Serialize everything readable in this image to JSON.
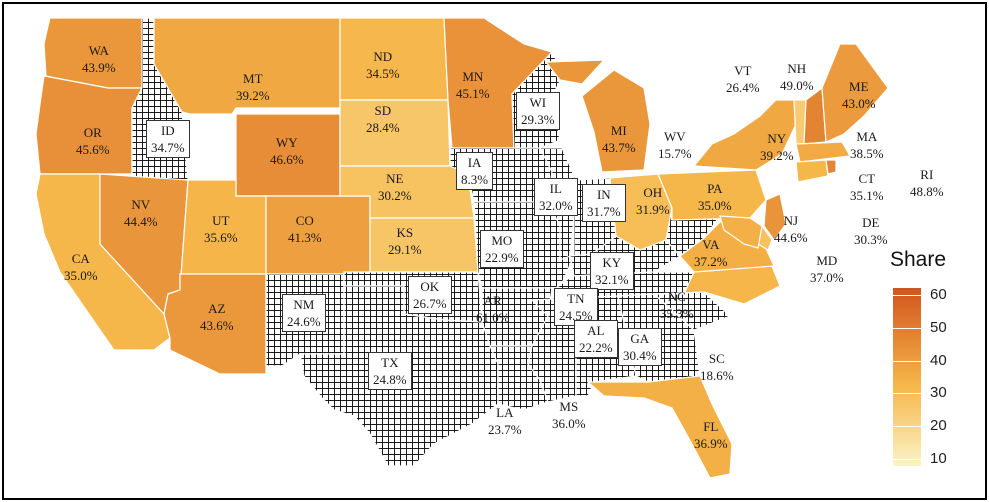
{
  "legend": {
    "title": "Share",
    "ticks": [
      "60",
      "50",
      "40",
      "30",
      "20",
      "10"
    ],
    "tick_values": [
      60,
      50,
      40,
      30,
      20,
      10
    ],
    "min": 8,
    "max": 62,
    "color_low": "#fbf3c8",
    "color_mid": "#f6b74a",
    "color_high": "#d2541e"
  },
  "hatched_states": [
    "ID",
    "WI",
    "IA",
    "IL",
    "IN",
    "MO",
    "KY",
    "NM",
    "OK",
    "TX",
    "AR",
    "LA",
    "MS",
    "AL",
    "GA",
    "TN",
    "SC",
    "WV",
    "IN"
  ],
  "states": [
    {
      "code": "WA",
      "value": "43.9%",
      "share": 43.9
    },
    {
      "code": "OR",
      "value": "45.6%",
      "share": 45.6
    },
    {
      "code": "CA",
      "value": "35.0%",
      "share": 35.0
    },
    {
      "code": "ID",
      "value": "34.7%",
      "share": 34.7
    },
    {
      "code": "NV",
      "value": "44.4%",
      "share": 44.4
    },
    {
      "code": "MT",
      "value": "39.2%",
      "share": 39.2
    },
    {
      "code": "WY",
      "value": "46.6%",
      "share": 46.6
    },
    {
      "code": "UT",
      "value": "35.6%",
      "share": 35.6
    },
    {
      "code": "AZ",
      "value": "43.6%",
      "share": 43.6
    },
    {
      "code": "CO",
      "value": "41.3%",
      "share": 41.3
    },
    {
      "code": "NM",
      "value": "24.6%",
      "share": 24.6
    },
    {
      "code": "ND",
      "value": "34.5%",
      "share": 34.5
    },
    {
      "code": "SD",
      "value": "28.4%",
      "share": 28.4
    },
    {
      "code": "NE",
      "value": "30.2%",
      "share": 30.2
    },
    {
      "code": "KS",
      "value": "29.1%",
      "share": 29.1
    },
    {
      "code": "OK",
      "value": "26.7%",
      "share": 26.7
    },
    {
      "code": "TX",
      "value": "24.8%",
      "share": 24.8
    },
    {
      "code": "MN",
      "value": "45.1%",
      "share": 45.1
    },
    {
      "code": "IA",
      "value": "8.3%",
      "share": 8.3
    },
    {
      "code": "MO",
      "value": "22.9%",
      "share": 22.9
    },
    {
      "code": "AR",
      "value": "61.0%",
      "share": 61.0
    },
    {
      "code": "LA",
      "value": "23.7%",
      "share": 23.7
    },
    {
      "code": "WI",
      "value": "29.3%",
      "share": 29.3
    },
    {
      "code": "IL",
      "value": "32.0%",
      "share": 32.0
    },
    {
      "code": "MI",
      "value": "43.7%",
      "share": 43.7
    },
    {
      "code": "IN",
      "value": "31.7%",
      "share": 31.7
    },
    {
      "code": "OH",
      "value": "31.9%",
      "share": 31.9
    },
    {
      "code": "KY",
      "value": "32.1%",
      "share": 32.1
    },
    {
      "code": "TN",
      "value": "24.5%",
      "share": 24.5
    },
    {
      "code": "MS",
      "value": "36.0%",
      "share": 36.0
    },
    {
      "code": "AL",
      "value": "22.2%",
      "share": 22.2
    },
    {
      "code": "GA",
      "value": "30.4%",
      "share": 30.4
    },
    {
      "code": "FL",
      "value": "36.9%",
      "share": 36.9
    },
    {
      "code": "SC",
      "value": "18.6%",
      "share": 18.6
    },
    {
      "code": "NC",
      "value": "35.3%",
      "share": 35.3
    },
    {
      "code": "VA",
      "value": "37.2%",
      "share": 37.2
    },
    {
      "code": "WV",
      "value": "15.7%",
      "share": 15.7
    },
    {
      "code": "PA",
      "value": "35.0%",
      "share": 35.0
    },
    {
      "code": "NY",
      "value": "39.2%",
      "share": 39.2
    },
    {
      "code": "VT",
      "value": "26.4%",
      "share": 26.4
    },
    {
      "code": "NH",
      "value": "49.0%",
      "share": 49.0
    },
    {
      "code": "ME",
      "value": "43.0%",
      "share": 43.0
    },
    {
      "code": "MA",
      "value": "38.5%",
      "share": 38.5
    },
    {
      "code": "CT",
      "value": "35.1%",
      "share": 35.1
    },
    {
      "code": "RI",
      "value": "48.8%",
      "share": 48.8
    },
    {
      "code": "NJ",
      "value": "44.6%",
      "share": 44.6
    },
    {
      "code": "DE",
      "value": "30.3%",
      "share": 30.3
    },
    {
      "code": "MD",
      "value": "37.0%",
      "share": 37.0
    }
  ]
}
